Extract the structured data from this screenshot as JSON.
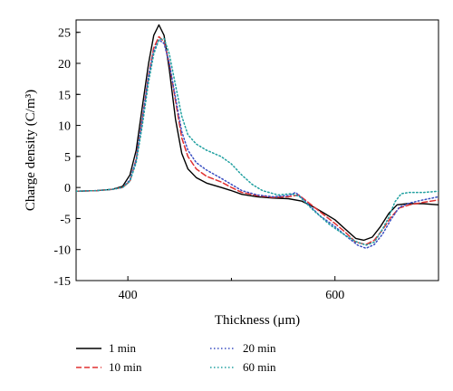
{
  "chart_data": {
    "type": "line",
    "title": "",
    "xlabel": "Thickness (μm)",
    "ylabel": "Charge density (C/m³)",
    "xlim": [
      350,
      700
    ],
    "ylim": [
      -15,
      27
    ],
    "xticks": [
      400,
      600
    ],
    "yticks": [
      25,
      20,
      15,
      10,
      5,
      0,
      -5,
      -10,
      -15
    ],
    "grid": false,
    "legend": "bottom, below axes, two columns",
    "series": [
      {
        "name": "1 min",
        "color": "#000000",
        "dash": "solid",
        "points": [
          [
            350,
            -0.6
          ],
          [
            370,
            -0.5
          ],
          [
            385,
            -0.3
          ],
          [
            395,
            0.2
          ],
          [
            402,
            2
          ],
          [
            408,
            6
          ],
          [
            414,
            13
          ],
          [
            420,
            20
          ],
          [
            425,
            24.5
          ],
          [
            430,
            26.2
          ],
          [
            435,
            24.5
          ],
          [
            440,
            19
          ],
          [
            446,
            11
          ],
          [
            452,
            5.5
          ],
          [
            458,
            3
          ],
          [
            466,
            1.6
          ],
          [
            476,
            0.7
          ],
          [
            490,
            0
          ],
          [
            500,
            -0.5
          ],
          [
            510,
            -1.1
          ],
          [
            525,
            -1.5
          ],
          [
            540,
            -1.7
          ],
          [
            555,
            -1.8
          ],
          [
            568,
            -2.2
          ],
          [
            580,
            -3.2
          ],
          [
            590,
            -4.2
          ],
          [
            600,
            -5.2
          ],
          [
            610,
            -6.7
          ],
          [
            620,
            -8.2
          ],
          [
            628,
            -8.5
          ],
          [
            636,
            -8
          ],
          [
            644,
            -6.3
          ],
          [
            652,
            -4.2
          ],
          [
            660,
            -2.8
          ],
          [
            670,
            -2.6
          ],
          [
            685,
            -2.6
          ],
          [
            700,
            -2.8
          ]
        ]
      },
      {
        "name": "10 min",
        "color": "#e03030",
        "dash": "dashed",
        "points": [
          [
            350,
            -0.6
          ],
          [
            370,
            -0.5
          ],
          [
            385,
            -0.3
          ],
          [
            395,
            0
          ],
          [
            402,
            1
          ],
          [
            408,
            4.5
          ],
          [
            414,
            11
          ],
          [
            420,
            18
          ],
          [
            425,
            22.5
          ],
          [
            430,
            24.3
          ],
          [
            435,
            23.5
          ],
          [
            440,
            20
          ],
          [
            446,
            14
          ],
          [
            452,
            8
          ],
          [
            458,
            5
          ],
          [
            466,
            3
          ],
          [
            476,
            1.8
          ],
          [
            490,
            0.9
          ],
          [
            500,
            0
          ],
          [
            510,
            -0.8
          ],
          [
            525,
            -1.3
          ],
          [
            540,
            -1.6
          ],
          [
            555,
            -1.5
          ],
          [
            565,
            -1.2
          ],
          [
            575,
            -2.5
          ],
          [
            590,
            -4.5
          ],
          [
            600,
            -5.8
          ],
          [
            610,
            -7.2
          ],
          [
            620,
            -8.8
          ],
          [
            630,
            -9.2
          ],
          [
            638,
            -8.5
          ],
          [
            646,
            -6.8
          ],
          [
            654,
            -4.8
          ],
          [
            662,
            -3.3
          ],
          [
            672,
            -2.8
          ],
          [
            685,
            -2.4
          ],
          [
            700,
            -2
          ]
        ]
      },
      {
        "name": "20 min",
        "color": "#3a4fc2",
        "dash": "dotted",
        "points": [
          [
            350,
            -0.6
          ],
          [
            370,
            -0.5
          ],
          [
            385,
            -0.3
          ],
          [
            395,
            0
          ],
          [
            402,
            1.2
          ],
          [
            408,
            4.5
          ],
          [
            414,
            11
          ],
          [
            420,
            18
          ],
          [
            425,
            22
          ],
          [
            430,
            23.8
          ],
          [
            435,
            23.2
          ],
          [
            440,
            20
          ],
          [
            446,
            14.5
          ],
          [
            452,
            9
          ],
          [
            458,
            6
          ],
          [
            466,
            4
          ],
          [
            476,
            2.8
          ],
          [
            490,
            1.5
          ],
          [
            500,
            0.5
          ],
          [
            510,
            -0.5
          ],
          [
            525,
            -1.2
          ],
          [
            540,
            -1.5
          ],
          [
            555,
            -1.3
          ],
          [
            562,
            -0.8
          ],
          [
            570,
            -2
          ],
          [
            585,
            -4.5
          ],
          [
            600,
            -6.3
          ],
          [
            612,
            -8
          ],
          [
            622,
            -9.3
          ],
          [
            630,
            -9.8
          ],
          [
            638,
            -9.2
          ],
          [
            646,
            -7.5
          ],
          [
            654,
            -5.2
          ],
          [
            662,
            -3.2
          ],
          [
            672,
            -2.5
          ],
          [
            685,
            -2
          ],
          [
            700,
            -1.5
          ]
        ]
      },
      {
        "name": "60 min",
        "color": "#20a0a0",
        "dash": "dotted",
        "points": [
          [
            350,
            -0.6
          ],
          [
            370,
            -0.5
          ],
          [
            385,
            -0.3
          ],
          [
            395,
            0
          ],
          [
            402,
            1
          ],
          [
            408,
            4
          ],
          [
            414,
            10
          ],
          [
            420,
            17
          ],
          [
            425,
            21.5
          ],
          [
            430,
            23.8
          ],
          [
            435,
            24
          ],
          [
            440,
            21.5
          ],
          [
            446,
            16.5
          ],
          [
            452,
            11.5
          ],
          [
            458,
            8.5
          ],
          [
            466,
            7
          ],
          [
            476,
            6
          ],
          [
            490,
            5
          ],
          [
            500,
            3.8
          ],
          [
            510,
            2
          ],
          [
            520,
            0.5
          ],
          [
            530,
            -0.5
          ],
          [
            545,
            -1.2
          ],
          [
            558,
            -1
          ],
          [
            566,
            -1.5
          ],
          [
            578,
            -3.5
          ],
          [
            595,
            -6
          ],
          [
            608,
            -7.5
          ],
          [
            620,
            -8.7
          ],
          [
            630,
            -9.3
          ],
          [
            638,
            -8.8
          ],
          [
            645,
            -7
          ],
          [
            652,
            -4.8
          ],
          [
            658,
            -2.3
          ],
          [
            664,
            -1
          ],
          [
            672,
            -0.8
          ],
          [
            686,
            -0.8
          ],
          [
            700,
            -0.6
          ]
        ]
      }
    ]
  }
}
